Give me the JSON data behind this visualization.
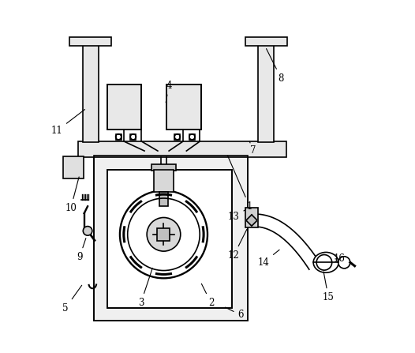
{
  "background_color": "#ffffff",
  "line_color": "#000000",
  "line_width": 1.2,
  "fig_width": 5.26,
  "fig_height": 4.47,
  "dpi": 100,
  "label_positions": {
    "1": [
      0.62,
      0.415,
      0.555,
      0.565
    ],
    "2": [
      0.51,
      0.14,
      0.48,
      0.2
    ],
    "3": [
      0.31,
      0.14,
      0.345,
      0.245
    ],
    "4": [
      0.39,
      0.76,
      0.38,
      0.705
    ],
    "5": [
      0.095,
      0.125,
      0.145,
      0.195
    ],
    "6": [
      0.595,
      0.105,
      0.545,
      0.13
    ],
    "7": [
      0.63,
      0.575,
      0.62,
      0.6
    ],
    "8": [
      0.71,
      0.78,
      0.665,
      0.87
    ],
    "9": [
      0.135,
      0.27,
      0.155,
      0.33
    ],
    "10": [
      0.11,
      0.41,
      0.135,
      0.505
    ],
    "11": [
      0.07,
      0.63,
      0.155,
      0.695
    ],
    "12": [
      0.575,
      0.275,
      0.615,
      0.355
    ],
    "13": [
      0.575,
      0.385,
      0.608,
      0.405
    ],
    "14": [
      0.66,
      0.255,
      0.71,
      0.295
    ],
    "15": [
      0.845,
      0.155,
      0.83,
      0.235
    ],
    "16": [
      0.875,
      0.265,
      0.858,
      0.265
    ]
  }
}
